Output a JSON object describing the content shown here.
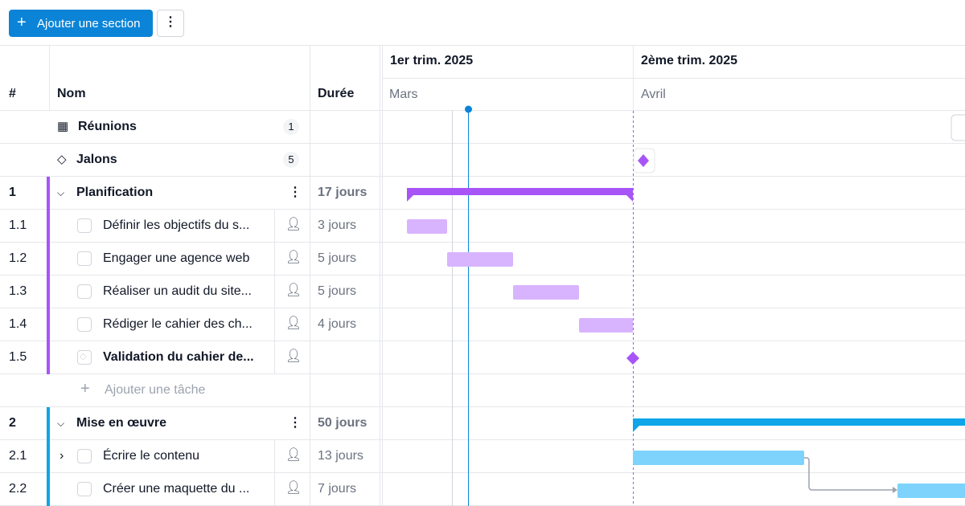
{
  "toolbar": {
    "add_section": "Ajouter une section"
  },
  "columns": {
    "number": "#",
    "name": "Nom",
    "duration": "Durée"
  },
  "timeline": {
    "quarters": [
      "1er trim. 2025",
      "2ème trim. 2025"
    ],
    "months": [
      "Mars",
      "Avril"
    ]
  },
  "special_rows": [
    {
      "label": "Réunions",
      "count": 1
    },
    {
      "label": "Jalons",
      "count": 5
    }
  ],
  "sections": [
    {
      "number": "1",
      "name": "Planification",
      "duration": "17 jours",
      "tasks": [
        {
          "number": "1.1",
          "name": "Définir les objectifs du s...",
          "duration": "3 jours"
        },
        {
          "number": "1.2",
          "name": "Engager une agence web",
          "duration": "5 jours"
        },
        {
          "number": "1.3",
          "name": "Réaliser un audit du site...",
          "duration": "5 jours"
        },
        {
          "number": "1.4",
          "name": "Rédiger le cahier des ch...",
          "duration": "4 jours"
        },
        {
          "number": "1.5",
          "name": "Validation du cahier de..."
        }
      ],
      "add_task": "Ajouter une tâche"
    },
    {
      "number": "2",
      "name": "Mise en œuvre",
      "duration": "50 jours",
      "tasks": [
        {
          "number": "2.1",
          "name": "Écrire le contenu",
          "duration": "13 jours"
        },
        {
          "number": "2.2",
          "name": "Créer une maquette du ...",
          "duration": "7 jours"
        }
      ]
    }
  ]
}
